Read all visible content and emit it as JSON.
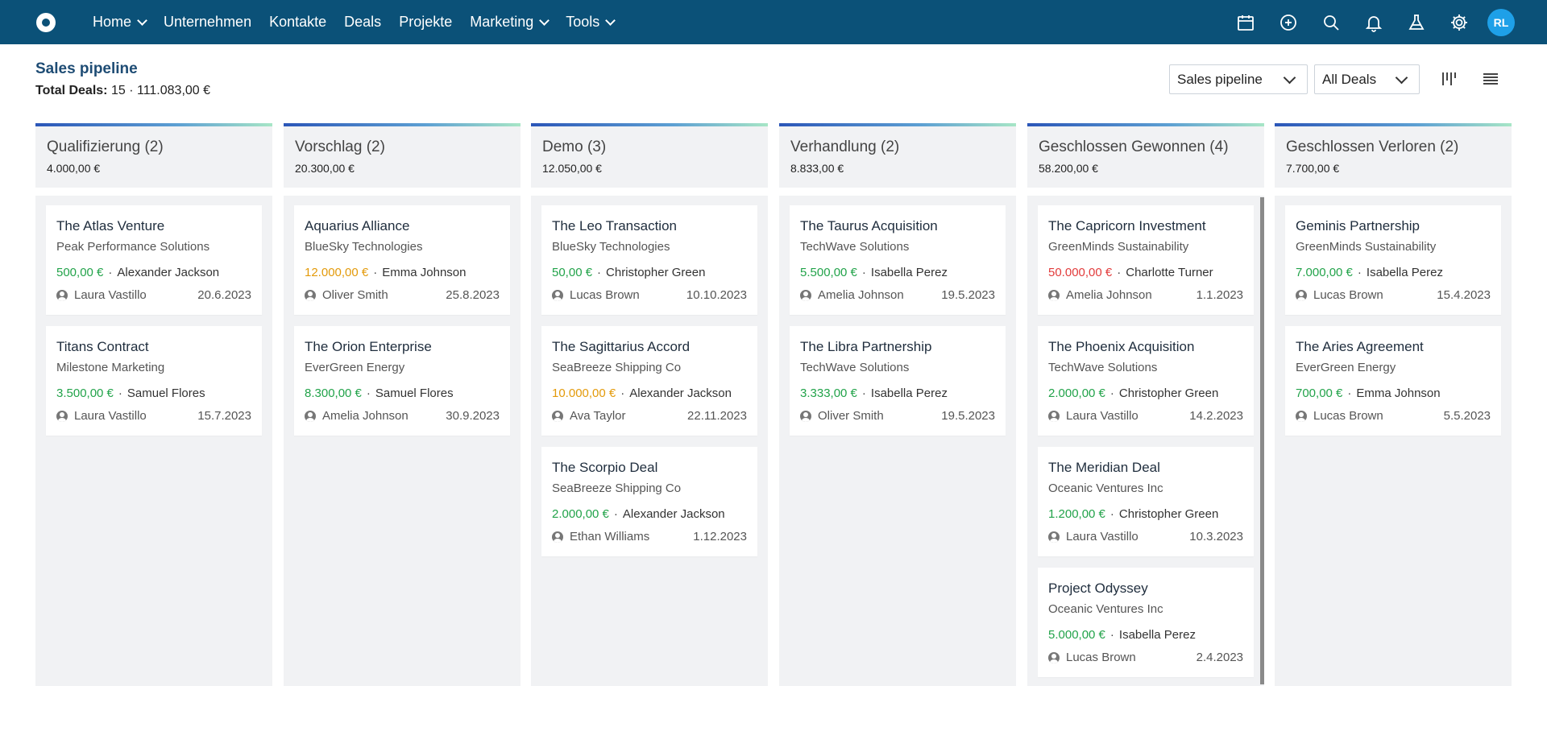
{
  "nav": {
    "items": [
      {
        "label": "Home",
        "dropdown": true
      },
      {
        "label": "Unternehmen",
        "dropdown": false
      },
      {
        "label": "Kontakte",
        "dropdown": false
      },
      {
        "label": "Deals",
        "dropdown": false
      },
      {
        "label": "Projekte",
        "dropdown": false
      },
      {
        "label": "Marketing",
        "dropdown": true
      },
      {
        "label": "Tools",
        "dropdown": true
      }
    ],
    "icons": [
      "calendar-icon",
      "add-circle-icon",
      "search-icon",
      "bell-icon",
      "flask-icon",
      "gear-icon"
    ],
    "avatar_initials": "RL"
  },
  "header": {
    "title": "Sales pipeline",
    "total_label": "Total Deals:",
    "total_count": "15",
    "separator": "·",
    "total_amount": "111.083,00 €",
    "pipeline_select": "Sales pipeline",
    "filter_select": "All Deals"
  },
  "colors": {
    "nav_bg": "#0b5178",
    "green": "#22a34a",
    "orange": "#e39a0a",
    "red": "#e23b3b"
  },
  "columns": [
    {
      "title": "Qualifizierung (2)",
      "sum": "4.000,00 €",
      "cards": [
        {
          "title": "The Atlas Venture",
          "company": "Peak Performance Solutions",
          "amount": "500,00 €",
          "amount_color": "green",
          "contact": "Alexander Jackson",
          "owner": "Laura Vastillo",
          "date": "20.6.2023"
        },
        {
          "title": "Titans Contract",
          "company": "Milestone Marketing",
          "amount": "3.500,00 €",
          "amount_color": "green",
          "contact": "Samuel Flores",
          "owner": "Laura Vastillo",
          "date": "15.7.2023"
        }
      ]
    },
    {
      "title": "Vorschlag (2)",
      "sum": "20.300,00 €",
      "cards": [
        {
          "title": "Aquarius Alliance",
          "company": "BlueSky Technologies",
          "amount": "12.000,00 €",
          "amount_color": "orange",
          "contact": "Emma Johnson",
          "owner": "Oliver Smith",
          "date": "25.8.2023"
        },
        {
          "title": "The Orion Enterprise",
          "company": "EverGreen Energy",
          "amount": "8.300,00 €",
          "amount_color": "green",
          "contact": "Samuel Flores",
          "owner": "Amelia Johnson",
          "date": "30.9.2023"
        }
      ]
    },
    {
      "title": "Demo (3)",
      "sum": "12.050,00 €",
      "cards": [
        {
          "title": "The Leo Transaction",
          "company": "BlueSky Technologies",
          "amount": "50,00 €",
          "amount_color": "green",
          "contact": "Christopher Green",
          "owner": "Lucas Brown",
          "date": "10.10.2023"
        },
        {
          "title": "The Sagittarius Accord",
          "company": "SeaBreeze Shipping Co",
          "amount": "10.000,00 €",
          "amount_color": "orange",
          "contact": "Alexander Jackson",
          "owner": "Ava Taylor",
          "date": "22.11.2023"
        },
        {
          "title": "The Scorpio Deal",
          "company": "SeaBreeze Shipping Co",
          "amount": "2.000,00 €",
          "amount_color": "green",
          "contact": "Alexander Jackson",
          "owner": "Ethan Williams",
          "date": "1.12.2023"
        }
      ]
    },
    {
      "title": "Verhandlung (2)",
      "sum": "8.833,00 €",
      "cards": [
        {
          "title": "The Taurus Acquisition",
          "company": "TechWave Solutions",
          "amount": "5.500,00 €",
          "amount_color": "green",
          "contact": "Isabella Perez",
          "owner": "Amelia Johnson",
          "date": "19.5.2023"
        },
        {
          "title": "The Libra Partnership",
          "company": "TechWave Solutions",
          "amount": "3.333,00 €",
          "amount_color": "green",
          "contact": "Isabella Perez",
          "owner": "Oliver Smith",
          "date": "19.5.2023"
        }
      ]
    },
    {
      "title": "Geschlossen Gewonnen (4)",
      "sum": "58.200,00 €",
      "cards": [
        {
          "title": "The Capricorn Investment",
          "company": "GreenMinds Sustainability",
          "amount": "50.000,00 €",
          "amount_color": "red",
          "contact": "Charlotte Turner",
          "owner": "Amelia Johnson",
          "date": "1.1.2023"
        },
        {
          "title": "The Phoenix Acquisition",
          "company": "TechWave Solutions",
          "amount": "2.000,00 €",
          "amount_color": "green",
          "contact": "Christopher Green",
          "owner": "Laura Vastillo",
          "date": "14.2.2023"
        },
        {
          "title": "The Meridian Deal",
          "company": "Oceanic Ventures Inc",
          "amount": "1.200,00 €",
          "amount_color": "green",
          "contact": "Christopher Green",
          "owner": "Laura Vastillo",
          "date": "10.3.2023"
        },
        {
          "title": "Project Odyssey",
          "company": "Oceanic Ventures Inc",
          "amount": "5.000,00 €",
          "amount_color": "green",
          "contact": "Isabella Perez",
          "owner": "Lucas Brown",
          "date": "2.4.2023"
        }
      ]
    },
    {
      "title": "Geschlossen Verloren (2)",
      "sum": "7.700,00 €",
      "cards": [
        {
          "title": "Geminis Partnership",
          "company": "GreenMinds Sustainability",
          "amount": "7.000,00 €",
          "amount_color": "green",
          "contact": "Isabella Perez",
          "owner": "Lucas Brown",
          "date": "15.4.2023"
        },
        {
          "title": "The Aries Agreement",
          "company": "EverGreen Energy",
          "amount": "700,00 €",
          "amount_color": "green",
          "contact": "Emma Johnson",
          "owner": "Lucas Brown",
          "date": "5.5.2023"
        }
      ]
    }
  ]
}
